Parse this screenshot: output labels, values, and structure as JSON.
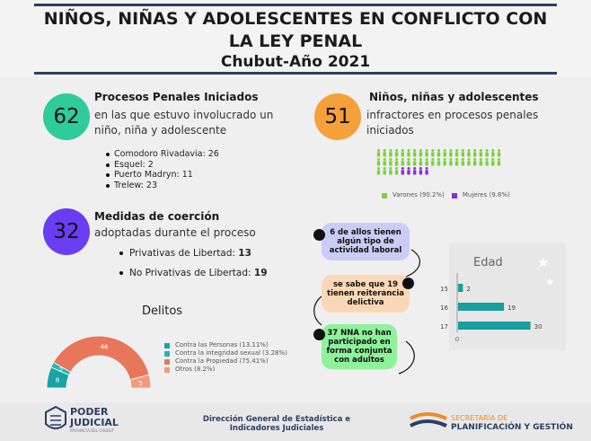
{
  "title": {
    "line1": "NIÑOS, NIÑAS Y ADOLESCENTES EN CONFLICTO CON",
    "line2": "LA LEY PENAL",
    "line3": "Chubut-Año 2021"
  },
  "procesos": {
    "number": "62",
    "heading": "Procesos Penales Iniciados",
    "text1": "en las que estuvo involucrado un",
    "text2": "niño, niña y adolescente",
    "items": [
      "Comodoro Rivadavia: 26",
      "Esquel: 2",
      "Puerto Madryn: 11",
      "Trelew: 23"
    ]
  },
  "nna": {
    "number": "51",
    "heading": "Niños, niñas y adolescentes",
    "text1": "infractores en procesos penales",
    "text2": "iniciados",
    "legend_male": "Varones (90.2%)",
    "legend_female": "Mujeres (9.8%)",
    "male_count": 46,
    "female_count": 5
  },
  "medidas": {
    "number": "32",
    "heading": "Medidas de coerción",
    "text1": "adoptadas durante el proceso",
    "items": [
      {
        "label": "Privativas de Libertad: ",
        "value": "13"
      },
      {
        "label": "No Privativas de Libertad: ",
        "value": "19"
      }
    ]
  },
  "callouts": [
    "6 de allos tienen algún tipo de actividad laboral",
    "se sabe que 19 tienen reiterancia delictiva",
    "37 NNA no han participado en forma conjunta con adultos"
  ],
  "delitos": {
    "title": "Delitos",
    "legend": [
      "Contra las Personas (13.11%)",
      "Contra la integridad sexual (3.28%)",
      "Contra la Propiedad (75.41%)",
      "Otros (8.2%)"
    ]
  },
  "edad_axis_zero": "0",
  "chart_data": [
    {
      "type": "pie",
      "variant": "half-donut",
      "title": "Delitos",
      "labels": [
        "Contra las Personas (13.11%)",
        "Contra la integridad sexual (3.28%)",
        "Contra la Propiedad (75.41%)",
        "Otros (8.2%)"
      ],
      "values": [
        8,
        2,
        46,
        5
      ],
      "colors": [
        "#1aa3a3",
        "#23b5b5",
        "#e8765a",
        "#f39a7a"
      ]
    },
    {
      "type": "bar",
      "orientation": "horizontal",
      "title": "Edad",
      "categories": [
        "15",
        "16",
        "17"
      ],
      "values": [
        2,
        19,
        30
      ],
      "xlim": [
        0,
        32
      ],
      "color": "#1a9e9e"
    }
  ],
  "footer": {
    "poder1": "PODER",
    "poder2": "JUDICIAL",
    "poder3": "PROVINCIA DEL CHUBUT",
    "center1": "Dirección General de Estadística e",
    "center2": "Indicadores Judiciales",
    "right1": "SECRETARÍA DE",
    "right2": "PLANIFICACIÓN Y GESTIÓN"
  },
  "colors": {
    "navy": "#2c3e63",
    "green": "#2ecc9a",
    "orange": "#f5a03a",
    "purple": "#6a3df2",
    "teal": "#1a9e9e",
    "salmon": "#e8765a",
    "male": "#7cd13a",
    "female": "#8a2be2"
  }
}
